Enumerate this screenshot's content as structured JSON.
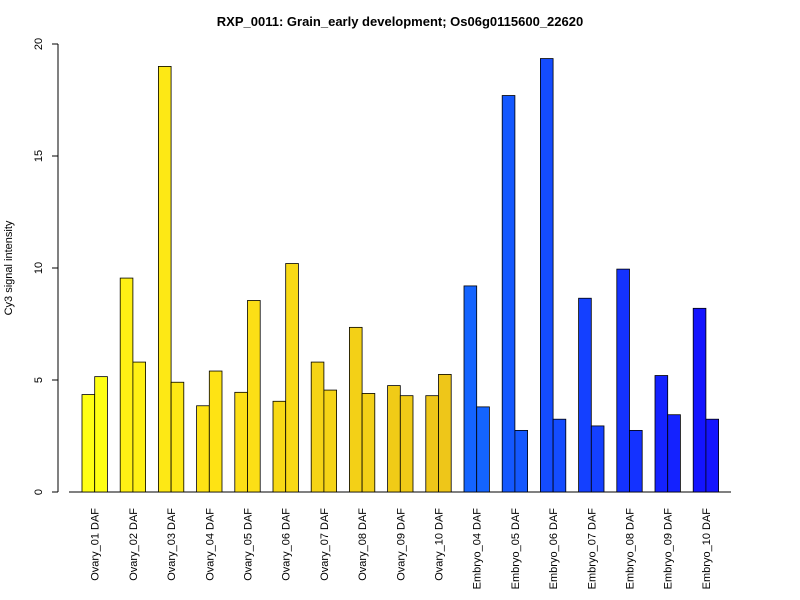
{
  "chart_data": {
    "type": "bar",
    "title": "RXP_0011: Grain_early development; Os06g0115600_22620",
    "xlabel": "",
    "ylabel": "Cy3 signal intensity",
    "ylim": [
      0,
      20
    ],
    "yticks": [
      "0",
      "5",
      "10",
      "15",
      "20"
    ],
    "categories": [
      "Ovary_01 DAF",
      "Ovary_02 DAF",
      "Ovary_03 DAF",
      "Ovary_04 DAF",
      "Ovary_05 DAF",
      "Ovary_06 DAF",
      "Ovary_07 DAF",
      "Ovary_08 DAF",
      "Ovary_09 DAF",
      "Ovary_10 DAF",
      "Embryo_04 DAF",
      "Embryo_05 DAF",
      "Embryo_06 DAF",
      "Embryo_07 DAF",
      "Embryo_08 DAF",
      "Embryo_09 DAF",
      "Embryo_10 DAF"
    ],
    "series": [
      {
        "values": [
          4.35,
          9.55,
          19.0,
          3.85,
          4.45,
          4.05,
          5.8,
          7.35,
          4.75,
          4.3,
          9.2,
          17.7,
          19.35,
          8.65,
          9.95,
          5.2,
          8.2
        ]
      },
      {
        "values": [
          5.15,
          5.8,
          4.9,
          5.4,
          8.55,
          10.2,
          4.55,
          4.4,
          4.3,
          5.25,
          3.8,
          2.75,
          3.25,
          2.95,
          2.75,
          3.45,
          3.25
        ]
      }
    ],
    "colors": [
      "#ffff14",
      "#fff014",
      "#fde815",
      "#fee314",
      "#fcdf16",
      "#f8d915",
      "#f5d416",
      "#f3d017",
      "#f0cb17",
      "#eec619",
      "#1464ff",
      "#1458ff",
      "#144cff",
      "#1440ff",
      "#1432ff",
      "#1422ff",
      "#1414ff"
    ],
    "grid": false,
    "legend": "none"
  }
}
